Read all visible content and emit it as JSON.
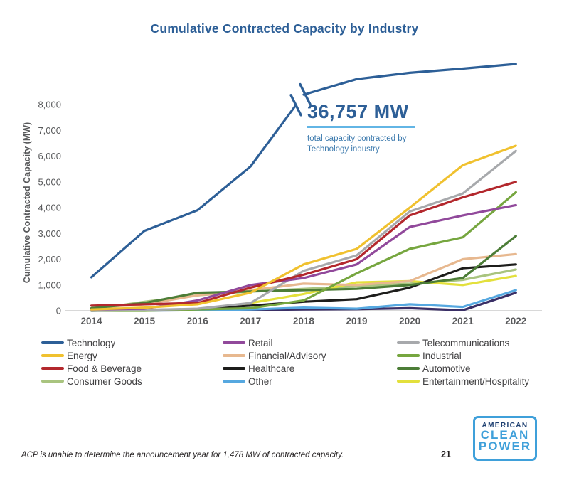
{
  "title": "Cumulative Contracted Capacity by Industry",
  "title_color": "#2d5f97",
  "annotation": {
    "value": "36,757 MW",
    "caption_line1": "total capacity contracted by",
    "caption_line2": "Technology industry",
    "value_color": "#2d5f97",
    "underline_color": "#62b5e5",
    "caption_color": "#3b79ad"
  },
  "footnote": "ACP is unable to determine the announcement year for 1,478 MW of contracted capacity.",
  "page_number": "21",
  "logo": {
    "line1": "AMERICAN",
    "line2": "CLEAN",
    "line3": "POWER",
    "line1_color": "#1c3e70",
    "accent_color": "#3fa0da"
  },
  "chart_data": {
    "type": "line",
    "title": "Cumulative Contracted Capacity by Industry",
    "xlabel": "",
    "ylabel": "Cumulative Contracted Capacity (MW)",
    "x": [
      "2014",
      "2015",
      "2016",
      "2017",
      "2018",
      "2019",
      "2020",
      "2021",
      "2022"
    ],
    "y_ticks": [
      "0",
      "1,000",
      "2,000",
      "3,000",
      "4,000",
      "5,000",
      "6,000",
      "7,000",
      "8,000"
    ],
    "ylim": [
      0,
      8000
    ],
    "grid": false,
    "legend_position": "bottom, 3 columns, column-major order",
    "axis_break": {
      "present": true,
      "above_value": 8000,
      "note": "y-axis broken above 8,000 MW; Technology line continues above the break not to scale, ending at its 2022 total of 36,757 MW. Values above 8,000 are display estimates."
    },
    "axis_text_color": "#58595b",
    "series": [
      {
        "name": "Technology",
        "color": "#2d5f97",
        "in_legend": true,
        "values": [
          1300,
          3100,
          3900,
          5600,
          15000,
          26000,
          30500,
          33500,
          36757
        ]
      },
      {
        "name": "Energy",
        "color": "#f0c12f",
        "in_legend": true,
        "values": [
          50,
          120,
          250,
          700,
          1800,
          2400,
          4000,
          5650,
          6400
        ]
      },
      {
        "name": "Food & Beverage",
        "color": "#b3282d",
        "in_legend": true,
        "values": [
          200,
          250,
          300,
          900,
          1400,
          2000,
          3700,
          4400,
          5000
        ]
      },
      {
        "name": "Consumer Goods",
        "color": "#a9c47f",
        "in_legend": true,
        "values": [
          50,
          350,
          600,
          750,
          850,
          950,
          1050,
          1200,
          1600
        ]
      },
      {
        "name": "Retail",
        "color": "#91499b",
        "in_legend": true,
        "values": [
          50,
          80,
          400,
          1000,
          1270,
          1800,
          3250,
          3700,
          4100
        ]
      },
      {
        "name": "Financial/Advisory",
        "color": "#e7b88f",
        "in_legend": true,
        "values": [
          100,
          250,
          600,
          800,
          1050,
          1000,
          1150,
          2000,
          2200
        ]
      },
      {
        "name": "Healthcare",
        "color": "#1d1d1b",
        "in_legend": true,
        "values": [
          0,
          30,
          60,
          200,
          350,
          450,
          900,
          1650,
          1800
        ]
      },
      {
        "name": "Other",
        "color": "#56a8e0",
        "in_legend": true,
        "values": [
          0,
          10,
          20,
          50,
          120,
          80,
          250,
          150,
          800
        ]
      },
      {
        "name": "Telecommunications",
        "color": "#a7a9ac",
        "in_legend": true,
        "values": [
          0,
          30,
          80,
          300,
          1550,
          2150,
          3850,
          4550,
          6200
        ]
      },
      {
        "name": "Industrial",
        "color": "#76a63f",
        "in_legend": true,
        "values": [
          0,
          0,
          50,
          100,
          400,
          1450,
          2400,
          2850,
          4600
        ]
      },
      {
        "name": "Automotive",
        "color": "#4c7d37",
        "in_legend": true,
        "values": [
          100,
          300,
          700,
          750,
          800,
          850,
          1000,
          1270,
          2900
        ]
      },
      {
        "name": "Entertainment/Hospitality",
        "color": "#e3e03c",
        "in_legend": true,
        "values": [
          0,
          20,
          50,
          300,
          650,
          1100,
          1150,
          1000,
          1350
        ]
      },
      {
        "name": "(unlabeled)",
        "color": "#3a2f66",
        "in_legend": false,
        "note": "thirteenth dark-purple line visible along the bottom with no legend entry",
        "values": [
          10,
          10,
          20,
          30,
          50,
          60,
          100,
          20,
          700
        ]
      }
    ]
  }
}
